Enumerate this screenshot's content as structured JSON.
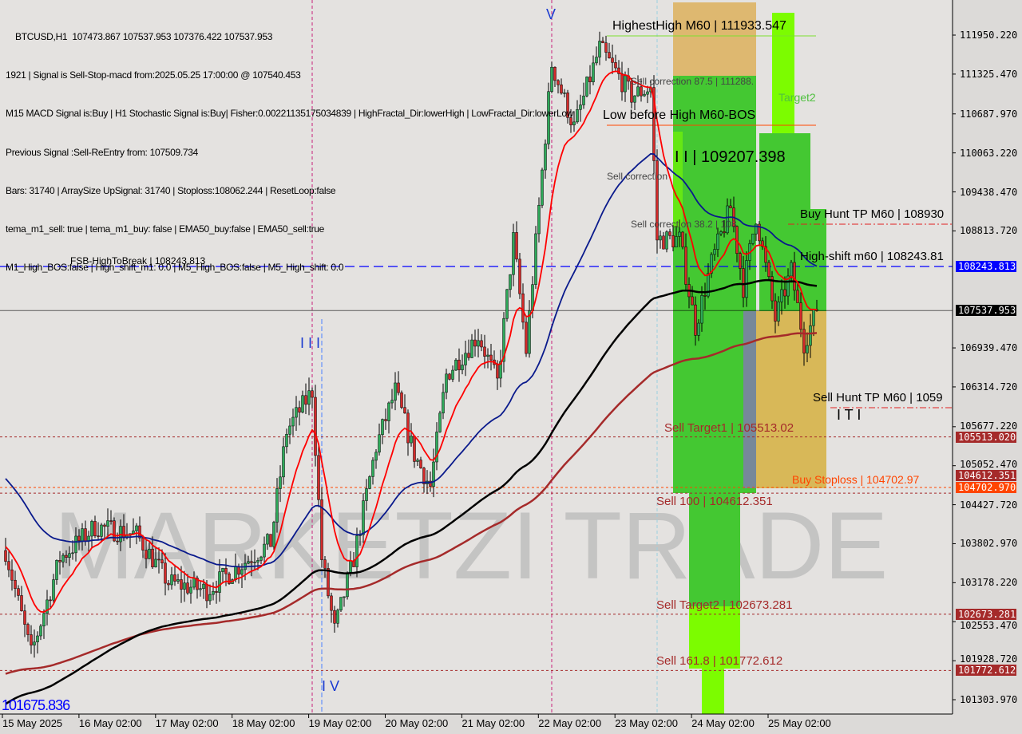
{
  "header": {
    "symbol_line": "BTCUSD,H1  107473.867 107537.953 107376.422 107537.953",
    "lines": [
      "1921 | Signal is Sell-Stop-macd from:2025.05.25 17:00:00 @ 107540.453",
      "M15 MACD Signal is:Buy | H1 Stochastic Signal is:Buy| Fisher:0.00221135175034839 | HighFractal_Dir:lowerHigh | LowFractal_Dir:lowerLow",
      "Previous Signal :Sell-ReEntry from: 107509.734",
      "Bars: 31740 | ArraySize UpSignal: 31740 | Stoploss:108062.244 | ResetLoop:false",
      "tema_m1_sell: true | tema_m1_buy: false | EMA50_buy:false | EMA50_sell:true",
      "M1_High_BOS:false | High_shift_m1: 0.0 | M5_High_BOS:false | M5_High_shift: 0.0"
    ]
  },
  "watermark": "MARKETZI TRADE",
  "colors": {
    "bull": "#2eaa5a",
    "bear": "#d42a2a",
    "ema_fast": "#ff0000",
    "ema_mid": "#0a1a8c",
    "sma_slow": "#000000",
    "ema_slow": "#a52a2a",
    "zone_green": "#44c832",
    "zone_lime": "#7cfc00",
    "zone_tan": "#deb870",
    "fsb_blue": "#0000ff"
  },
  "chart_data": {
    "type": "candlestick",
    "symbol": "BTCUSD",
    "timeframe": "H1",
    "price_ticks": [
      111950.22,
      111325.47,
      110687.97,
      110063.22,
      109438.47,
      108813.72,
      106939.47,
      106314.72,
      105677.22,
      105052.47,
      104427.72,
      103802.97,
      103178.22,
      102553.47,
      101928.72,
      101303.97
    ],
    "time_ticks": [
      "15 May 2025",
      "16 May 02:00",
      "17 May 02:00",
      "18 May 02:00",
      "19 May 02:00",
      "20 May 02:00",
      "21 May 02:00",
      "22 May 02:00",
      "23 May 02:00",
      "24 May 02:00",
      "25 May 02:00"
    ],
    "price_path": [
      {
        "t": "2025-05-15 03:00",
        "p": 103694
      },
      {
        "t": "2025-05-15 11:00",
        "p": 102030
      },
      {
        "t": "2025-05-15 20:00",
        "p": 103565
      },
      {
        "t": "2025-05-16 07:00",
        "p": 104076
      },
      {
        "t": "2025-05-16 20:00",
        "p": 103950
      },
      {
        "t": "2025-05-17 06:00",
        "p": 103180
      },
      {
        "t": "2025-05-17 18:00",
        "p": 103055
      },
      {
        "t": "2025-05-18 04:00",
        "p": 103440
      },
      {
        "t": "2025-05-18 14:00",
        "p": 103820
      },
      {
        "t": "2025-05-18 19:00",
        "p": 105610
      },
      {
        "t": "2025-05-19 03:00",
        "p": 106250
      },
      {
        "t": "2025-05-19 06:00",
        "p": 103565
      },
      {
        "t": "2025-05-19 10:00",
        "p": 102415
      },
      {
        "t": "2025-05-19 16:00",
        "p": 103565
      },
      {
        "t": "2025-05-19 23:00",
        "p": 105355
      },
      {
        "t": "2025-05-20 05:00",
        "p": 106250
      },
      {
        "t": "2025-05-20 11:00",
        "p": 105225
      },
      {
        "t": "2025-05-20 16:00",
        "p": 104715
      },
      {
        "t": "2025-05-20 21:00",
        "p": 106505
      },
      {
        "t": "2025-05-21 07:00",
        "p": 107145
      },
      {
        "t": "2025-05-21 13:00",
        "p": 106380
      },
      {
        "t": "2025-05-21 18:00",
        "p": 108680
      },
      {
        "t": "2025-05-21 22:00",
        "p": 106890
      },
      {
        "t": "2025-05-22 06:00",
        "p": 111490
      },
      {
        "t": "2025-05-22 13:00",
        "p": 110470
      },
      {
        "t": "2025-05-22 21:00",
        "p": 111745
      },
      {
        "t": "2025-05-23 07:00",
        "p": 110980
      },
      {
        "t": "2025-05-23 13:00",
        "p": 111110
      },
      {
        "t": "2025-05-23 15:00",
        "p": 108680
      },
      {
        "t": "2025-05-23 22:00",
        "p": 108680
      },
      {
        "t": "2025-05-24 03:00",
        "p": 107275
      },
      {
        "t": "2025-05-24 08:00",
        "p": 108300
      },
      {
        "t": "2025-05-24 14:00",
        "p": 109190
      },
      {
        "t": "2025-05-24 18:00",
        "p": 107915
      },
      {
        "t": "2025-05-24 22:00",
        "p": 109065
      },
      {
        "t": "2025-05-25 04:00",
        "p": 107400
      },
      {
        "t": "2025-05-25 09:00",
        "p": 108170
      },
      {
        "t": "2025-05-25 13:00",
        "p": 107020
      },
      {
        "t": "2025-05-25 17:00",
        "p": 107537.953
      }
    ],
    "levels": [
      {
        "name": "fsb",
        "label": "FSB-HighToBreak | 108243.813",
        "price": 108243.813,
        "tag": "108243.813",
        "color": "#0000ff",
        "style": "dashed"
      },
      {
        "name": "current",
        "label": "",
        "price": 107537.953,
        "tag": "107537.953",
        "color": "#000000",
        "style": "solid"
      },
      {
        "name": "sell-target1",
        "label": "Sell Target1 | 105513.02",
        "price": 105513.02,
        "tag": "105513.020",
        "color": "#a52a2a",
        "style": "dashed"
      },
      {
        "name": "buy-stoploss",
        "label": "Buy Stoploss | 104702.97",
        "price": 104702.97,
        "tag": "104702.970",
        "color": "#ff4500",
        "style": "dashed"
      },
      {
        "name": "sell-100",
        "label": "Sell 100 | 104612.351",
        "price": 104612.351,
        "tag": "104612.351",
        "color": "#a52a2a",
        "style": "dashed"
      },
      {
        "name": "sell-target2",
        "label": "Sell Target2 | 102673.281",
        "price": 102673.281,
        "tag": "102673.281",
        "color": "#a52a2a",
        "style": "dashed"
      },
      {
        "name": "sell-161",
        "label": "Sell 161.8 | 101772.612",
        "price": 101772.612,
        "tag": "101772.612",
        "color": "#a52a2a",
        "style": "dashed"
      }
    ],
    "annotations": {
      "highest_high": "HighestHigh    M60 | 111933.547",
      "low_before_high": "Low before High    M60-BOS",
      "sell_corr_875": "Sell correction 87.5 | 111288.",
      "sell_corr_mid": "Sell correction",
      "ii_level": "I I | 109207.398",
      "sell_corr_382": "Sell correction 38.2 | 108",
      "target2": "Target2",
      "buy_hunt": "Buy Hunt TP M60 | 108930",
      "high_shift": "High-shift m60 | 108243.81",
      "sell_hunt": "Sell Hunt TP M60 | 1059",
      "low_mark": "101675.836",
      "wave_v": "V",
      "wave_iii": "I I I",
      "wave_iv": "I V",
      "wave_iti": "I T I"
    }
  }
}
